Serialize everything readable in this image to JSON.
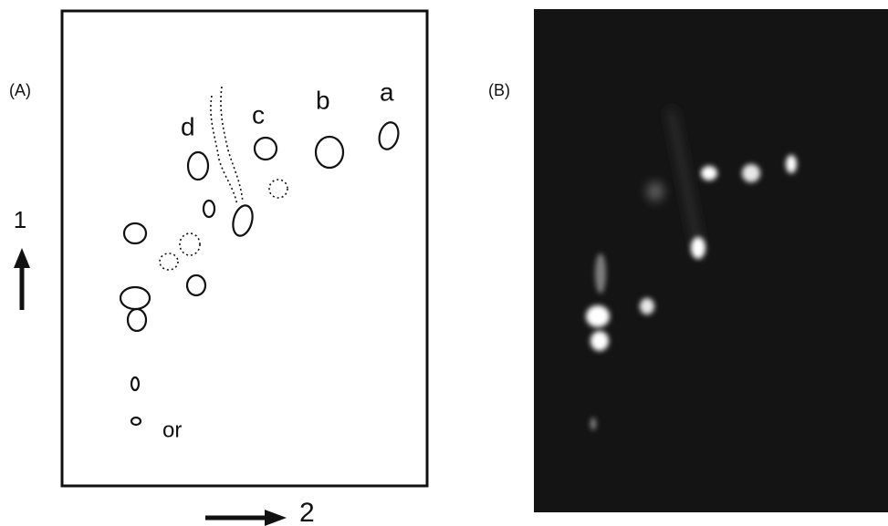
{
  "panel_a": {
    "label": "(A)",
    "spot_labels": {
      "a": "a",
      "b": "b",
      "c": "c",
      "d": "d"
    },
    "origin_label": "or",
    "axis_1": "1",
    "axis_2": "2"
  },
  "panel_b": {
    "label": "(B)"
  }
}
